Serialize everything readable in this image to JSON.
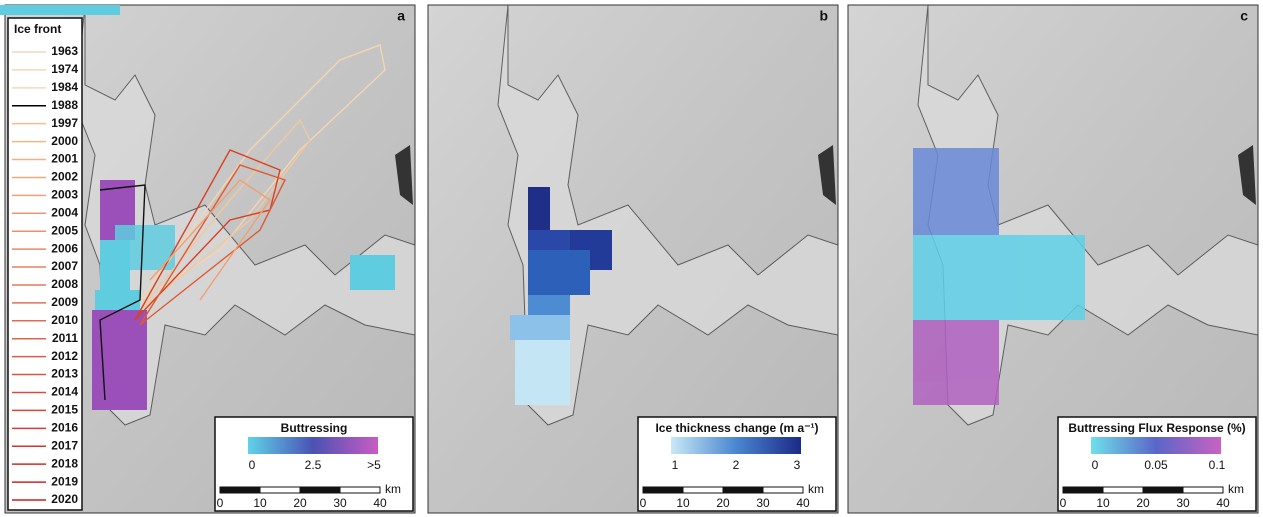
{
  "panels": [
    {
      "label": "a",
      "legend": {
        "title": "Buttressing",
        "ticks": [
          "0",
          "2.5",
          ">5"
        ]
      },
      "scale": {
        "ticks": [
          "0",
          "10",
          "20",
          "30",
          "40"
        ],
        "unit": "km"
      }
    },
    {
      "label": "b",
      "legend": {
        "title": "Ice thickness change (m a⁻¹)",
        "ticks": [
          "1",
          "2",
          "3"
        ]
      },
      "scale": {
        "ticks": [
          "0",
          "10",
          "20",
          "30",
          "40"
        ],
        "unit": "km"
      }
    },
    {
      "label": "c",
      "legend": {
        "title": "Buttressing Flux Response (%)",
        "ticks": [
          "0",
          "0.05",
          "0.1"
        ]
      },
      "scale": {
        "ticks": [
          "0",
          "10",
          "20",
          "30",
          "40"
        ],
        "unit": "km"
      }
    }
  ],
  "ice_front": {
    "title": "Ice front",
    "years": [
      "1963",
      "1974",
      "1984",
      "1988",
      "1997",
      "2000",
      "2001",
      "2002",
      "2003",
      "2004",
      "2005",
      "2006",
      "2007",
      "2008",
      "2009",
      "2010",
      "2011",
      "2012",
      "2013",
      "2014",
      "2015",
      "2016",
      "2017",
      "2018",
      "2019",
      "2020"
    ]
  }
}
